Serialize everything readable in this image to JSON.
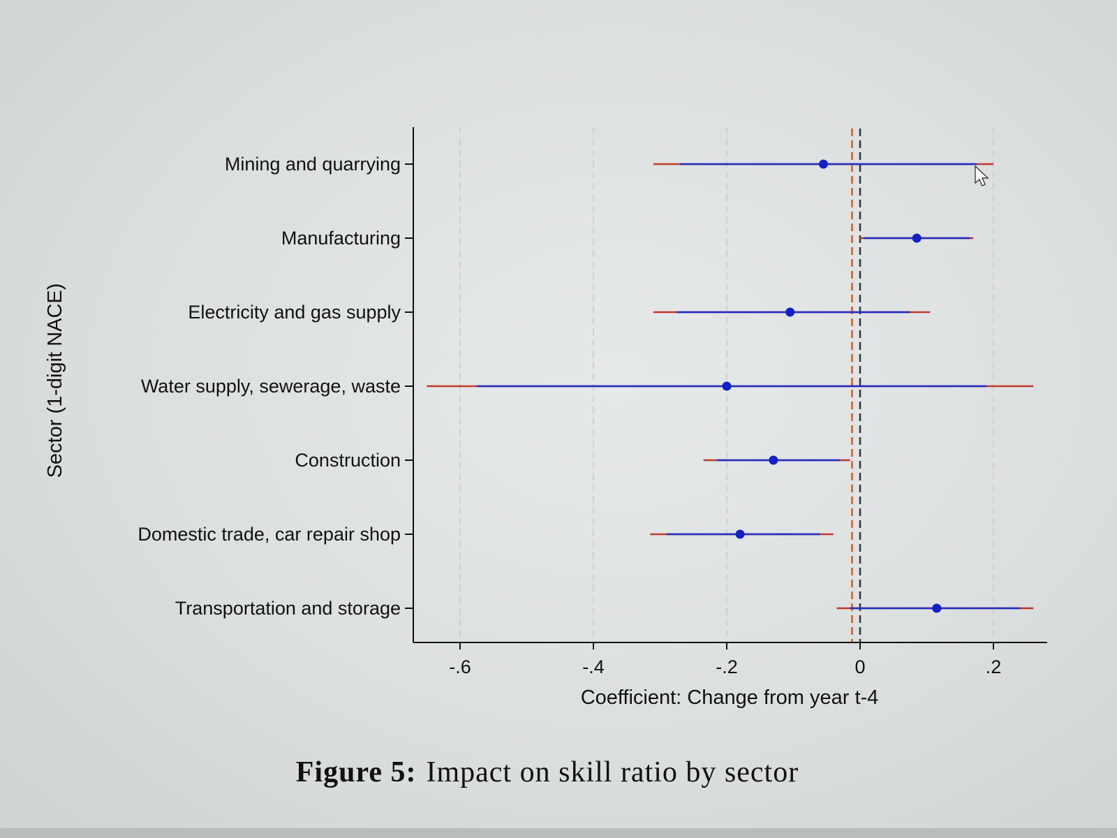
{
  "chart_data": {
    "type": "coefficient_plot",
    "xlabel": "Coefficient: Change from year t-4",
    "ylabel": "Sector (1-digit NACE)",
    "xlim": [
      -0.69,
      0.28
    ],
    "xticks": [
      -0.6,
      -0.4,
      -0.2,
      0,
      0.2
    ],
    "xtick_labels": [
      "-.6",
      "-.4",
      "-.2",
      "0",
      ".2"
    ],
    "reference_lines": [
      {
        "x": -0.012,
        "style": "dashed",
        "color": "#d45a1e"
      },
      {
        "x": 0.0,
        "style": "dashed",
        "color": "#333333"
      }
    ],
    "series": [
      {
        "category": "Mining and quarrying",
        "estimate": -0.055,
        "ci95": [
          -0.31,
          0.2
        ],
        "ci90": [
          -0.27,
          0.175
        ]
      },
      {
        "category": "Manufacturing",
        "estimate": 0.085,
        "ci95": [
          0.0,
          0.17
        ],
        "ci90": [
          0.005,
          0.165
        ]
      },
      {
        "category": "Electricity and gas supply",
        "estimate": -0.105,
        "ci95": [
          -0.31,
          0.105
        ],
        "ci90": [
          -0.275,
          0.075
        ]
      },
      {
        "category": "Water supply, sewerage, waste",
        "estimate": -0.2,
        "ci95": [
          -0.65,
          0.26
        ],
        "ci90": [
          -0.575,
          0.19
        ]
      },
      {
        "category": "Construction",
        "estimate": -0.13,
        "ci95": [
          -0.235,
          -0.015
        ],
        "ci90": [
          -0.215,
          -0.03
        ]
      },
      {
        "category": "Domestic trade, car repair shop",
        "estimate": -0.18,
        "ci95": [
          -0.315,
          -0.04
        ],
        "ci90": [
          -0.29,
          -0.06
        ]
      },
      {
        "category": "Transportation and storage",
        "estimate": 0.115,
        "ci95": [
          -0.035,
          0.26
        ],
        "ci90": [
          -0.015,
          0.24
        ]
      }
    ],
    "colors": {
      "ci95": "#c0392b",
      "ci90": "#1c2fc4",
      "point": "#1320c8",
      "axis": "#111111",
      "grid": "#c7c9ca"
    }
  },
  "caption": {
    "label": "Figure 5:",
    "text": "Impact on skill ratio by sector"
  }
}
